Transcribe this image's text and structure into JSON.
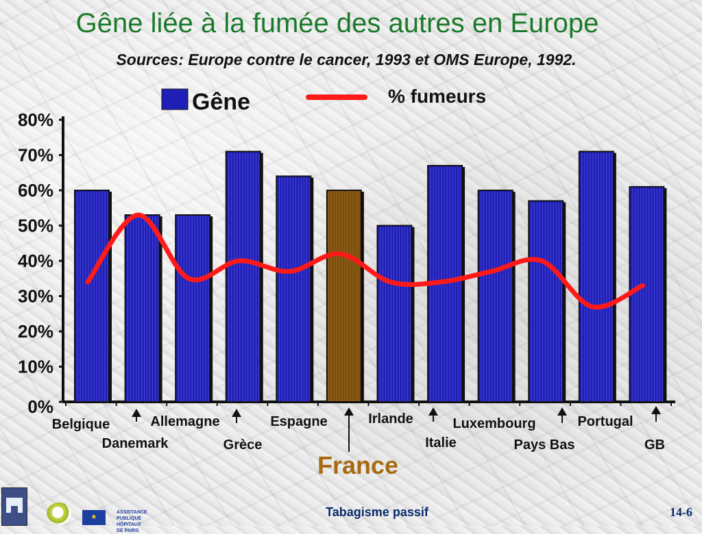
{
  "title": "Gêne liée à la fumée des autres en Europe",
  "subtitle": "Sources: Europe contre le cancer, 1993 et OMS Europe, 1992.",
  "footer": {
    "label": "Tabagisme passif",
    "page": "14-6"
  },
  "logos": {
    "aphp_line1": "ASSISTANCE",
    "aphp_line2": "PUBLIQUE",
    "aphp_line3": "HÔPITAUX",
    "aphp_line4": "DE PARIS"
  },
  "colors": {
    "bar": "#1f1fb8",
    "bar_highlight": "#8a5a12",
    "line": "#ff1a1a",
    "title": "#1a7a2a",
    "highlight_label": "#a86a10"
  },
  "chart_data": {
    "type": "bar",
    "categories": [
      "Belgique",
      "Danemark",
      "Allemagne",
      "Grèce",
      "Espagne",
      "France",
      "Irlande",
      "Italie",
      "Luxembourg",
      "Pays Bas",
      "Portugal",
      "GB"
    ],
    "series": [
      {
        "name": "Gêne",
        "type": "bar",
        "values": [
          60,
          53,
          53,
          71,
          64,
          60,
          50,
          67,
          60,
          57,
          71,
          61
        ]
      },
      {
        "name": "% fumeurs",
        "type": "line",
        "values": [
          34,
          53,
          35,
          40,
          37,
          42,
          34,
          34,
          37,
          40,
          27,
          33
        ]
      }
    ],
    "highlight": "France",
    "ylim": [
      0,
      80
    ],
    "yticks": [
      "0%",
      "10%",
      "20%",
      "30%",
      "40%",
      "50%",
      "60%",
      "70%",
      "80%"
    ],
    "legend": {
      "bar_label": "Gêne",
      "line_label": "% fumeurs",
      "position": "top"
    },
    "grid": false
  }
}
